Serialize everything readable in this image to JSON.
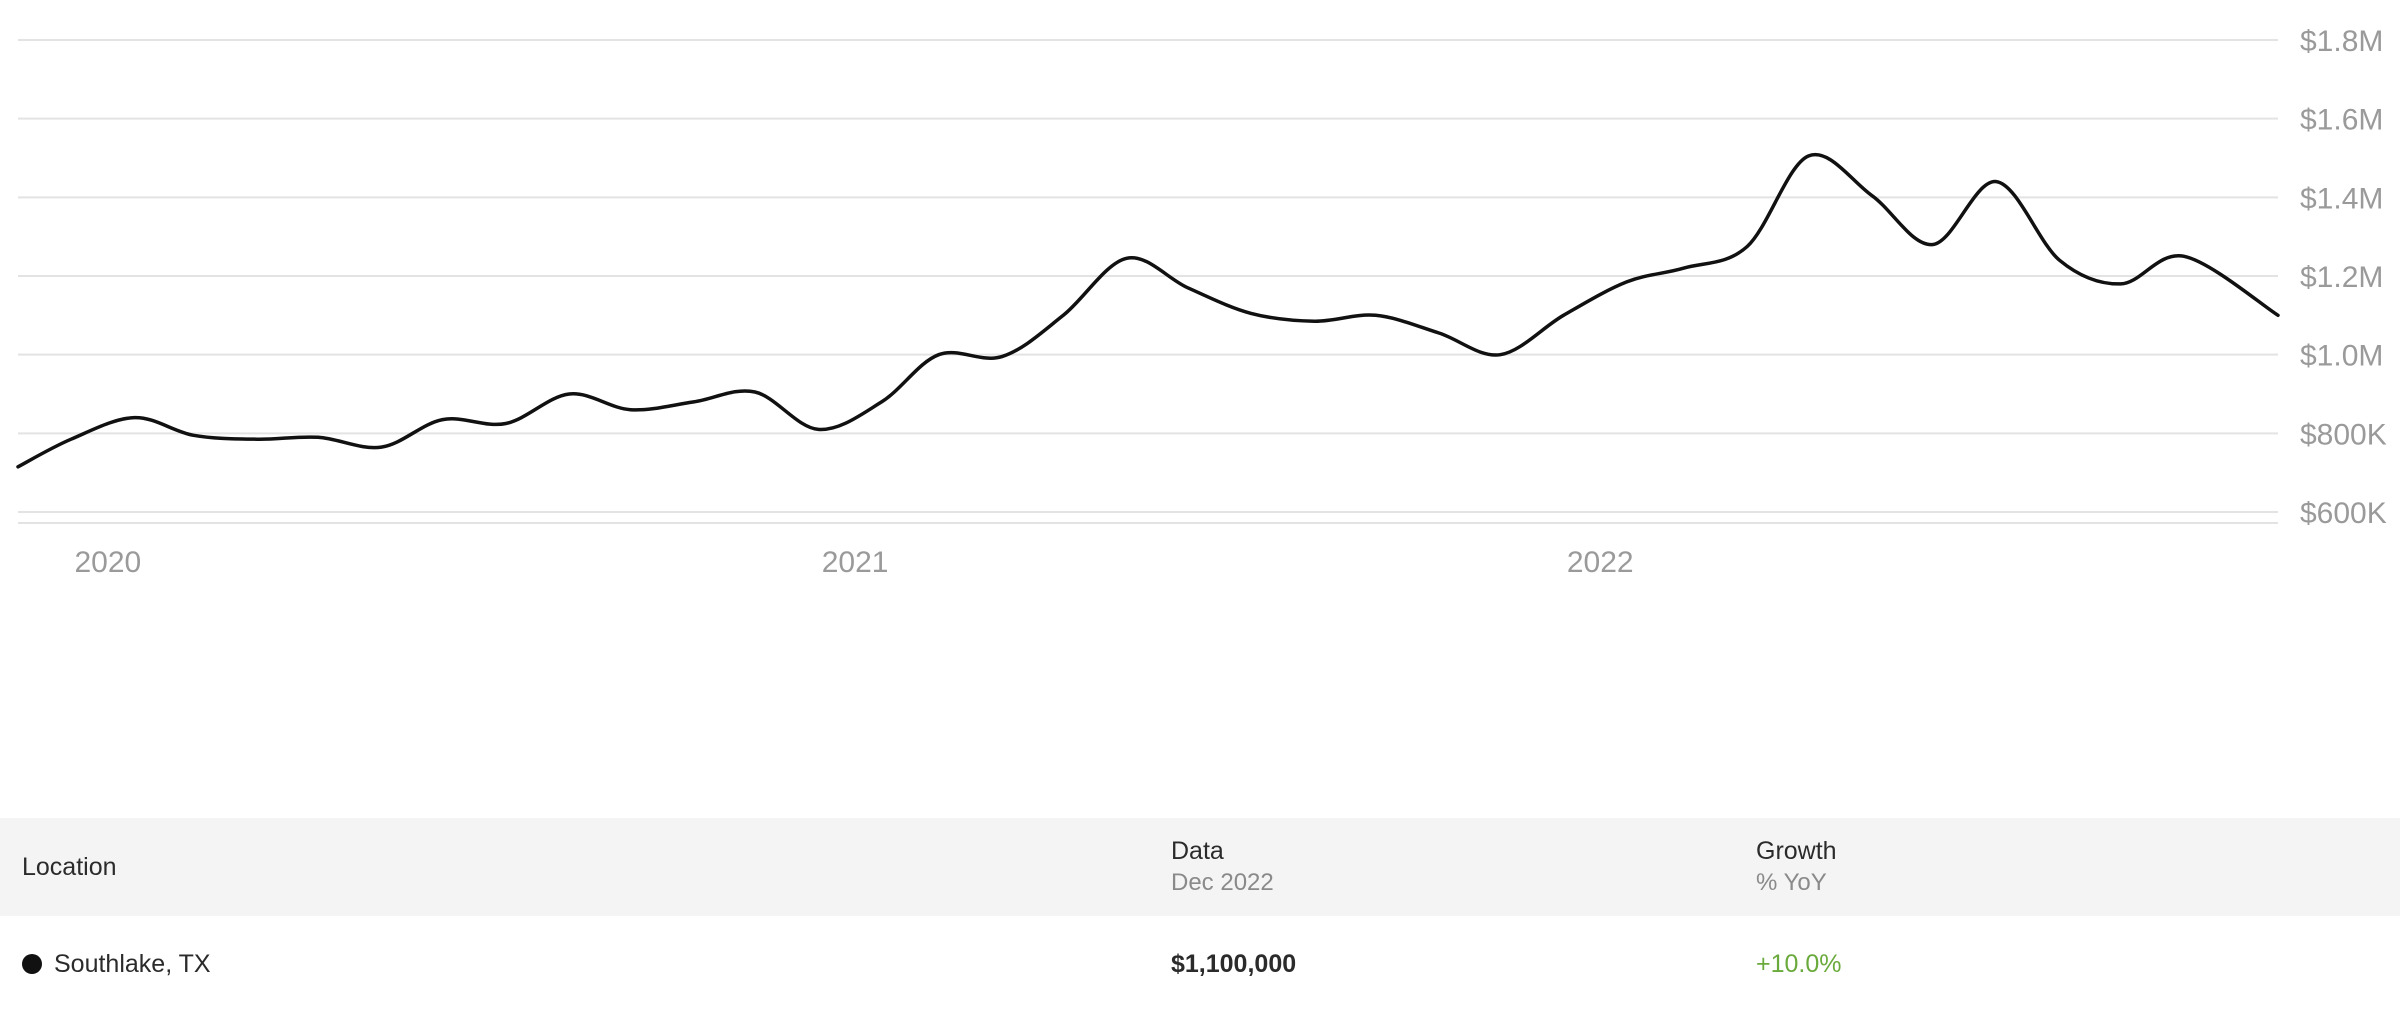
{
  "chart_data": {
    "type": "line",
    "x_ticks": [
      "2020",
      "2021",
      "2022"
    ],
    "y_ticks": [
      "$1.8M",
      "$1.6M",
      "$1.4M",
      "$1.2M",
      "$1.0M",
      "$800K",
      "$600K"
    ],
    "y_tick_values": [
      1800000,
      1600000,
      1400000,
      1200000,
      1000000,
      800000,
      600000
    ],
    "ylim": [
      600000,
      1800000
    ],
    "xlim": [
      "2019-12-20",
      "2022-12-31"
    ],
    "x_tick_dates": [
      "2020-01-01",
      "2021-01-01",
      "2022-01-01"
    ],
    "grid": true,
    "y_axis_position": "right",
    "series": [
      {
        "color": "#111111",
        "x": [
          "2019-12-20",
          "2020-01-15",
          "2020-02-15",
          "2020-03-15",
          "2020-04-15",
          "2020-05-15",
          "2020-06-15",
          "2020-07-15",
          "2020-08-15",
          "2020-09-15",
          "2020-10-15",
          "2020-11-15",
          "2020-12-15",
          "2021-01-15",
          "2021-02-15",
          "2021-03-15",
          "2021-04-15",
          "2021-05-15",
          "2021-06-15",
          "2021-07-15",
          "2021-08-15",
          "2021-09-15",
          "2021-10-15",
          "2021-11-15",
          "2021-12-15",
          "2022-01-15",
          "2022-02-15",
          "2022-03-15",
          "2022-04-15",
          "2022-05-15",
          "2022-06-15",
          "2022-07-15",
          "2022-08-15",
          "2022-09-15",
          "2022-10-15",
          "2022-11-15",
          "2022-12-31"
        ],
        "values": [
          715000,
          785000,
          840000,
          795000,
          785000,
          790000,
          765000,
          835000,
          825000,
          900000,
          860000,
          880000,
          905000,
          810000,
          880000,
          1000000,
          995000,
          1100000,
          1245000,
          1170000,
          1105000,
          1085000,
          1100000,
          1055000,
          1000000,
          1100000,
          1185000,
          1220000,
          1275000,
          1505000,
          1405000,
          1280000,
          1440000,
          1240000,
          1180000,
          1250000,
          1100000
        ]
      }
    ]
  },
  "table": {
    "headers": {
      "location": "Location",
      "data": "Data",
      "data_sub": "Dec 2022",
      "growth": "Growth",
      "growth_sub": "% YoY"
    },
    "rows": [
      {
        "location": "Southlake, TX",
        "value": "$1,100,000",
        "growth": "+10.0%",
        "dot_color": "#111111",
        "growth_color": "#6aaa3c"
      }
    ]
  }
}
